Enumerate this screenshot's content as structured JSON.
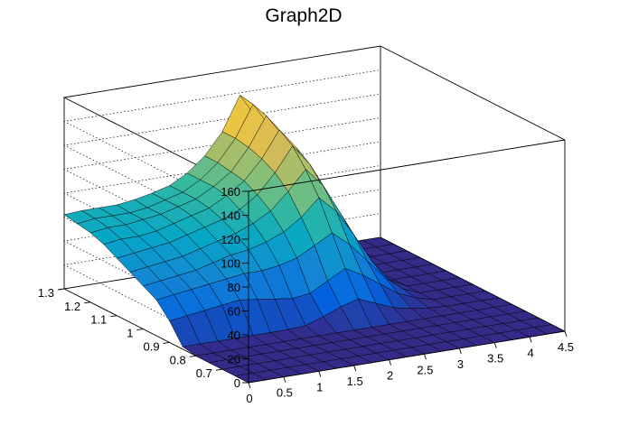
{
  "chart_data": {
    "type": "surface3d",
    "title": "Graph2D",
    "xlabel": "",
    "ylabel": "",
    "zlabel": "",
    "xlim": [
      0,
      4.5
    ],
    "ylim": [
      0.6,
      1.3
    ],
    "zlim": [
      0,
      160
    ],
    "x_ticks": [
      "0",
      "0.5",
      "1",
      "1.5",
      "2",
      "2.5",
      "3",
      "3.5",
      "4",
      "4.5"
    ],
    "x_tick_values": [
      0,
      0.5,
      1,
      1.5,
      2,
      2.5,
      3,
      3.5,
      4,
      4.5
    ],
    "y_ticks": [
      "0.7",
      "0.8",
      "0.9",
      "1",
      "1.1",
      "1.2",
      "1.3"
    ],
    "y_tick_values": [
      0.7,
      0.8,
      0.9,
      1.0,
      1.1,
      1.2,
      1.3
    ],
    "z_ticks": [
      "0",
      "20",
      "40",
      "60",
      "80",
      "100",
      "120",
      "140",
      "160"
    ],
    "z_tick_values": [
      0,
      20,
      40,
      60,
      80,
      100,
      120,
      140,
      160
    ],
    "grid": true,
    "colormap": [
      "#352a87",
      "#0363e1",
      "#1485d4",
      "#06a7c6",
      "#38b99e",
      "#92bf73",
      "#d9ba56",
      "#fcce2e",
      "#f9fb0e"
    ],
    "surface_x": [
      0,
      0.25,
      0.5,
      0.75,
      1,
      1.25,
      1.5,
      1.75,
      2,
      2.25,
      2.5,
      2.75,
      3,
      3.25,
      3.5,
      3.75,
      4,
      4.25,
      4.5
    ],
    "surface_y": [
      0.6,
      0.65,
      0.7,
      0.75,
      0.8,
      0.85,
      0.9,
      0.95,
      1.0,
      1.05,
      1.1,
      1.15,
      1.2,
      1.25,
      1.3
    ],
    "surface_z": [
      [
        0,
        0,
        0,
        0,
        0,
        0,
        0,
        0,
        0,
        0,
        0,
        0,
        0,
        0,
        0,
        0,
        0,
        0,
        0
      ],
      [
        0,
        0,
        0,
        0,
        0,
        0,
        0,
        0,
        0,
        0,
        0,
        0,
        0,
        0,
        0,
        0,
        0,
        0,
        0
      ],
      [
        0,
        0,
        0,
        0,
        0,
        0,
        0,
        0,
        0,
        0,
        0,
        0,
        0,
        0,
        0,
        0,
        0,
        0,
        0
      ],
      [
        0,
        0,
        0,
        0,
        0,
        0,
        0,
        0,
        0,
        0,
        0,
        0,
        0,
        0,
        0,
        0,
        0,
        0,
        0
      ],
      [
        0,
        0,
        0,
        0,
        0,
        0,
        0,
        0,
        0,
        0,
        0,
        0,
        0,
        0,
        0,
        0,
        0,
        0,
        0
      ],
      [
        2,
        2,
        2,
        2,
        2,
        2,
        2,
        3,
        8,
        14,
        18,
        12,
        6,
        3,
        1,
        0,
        0,
        0,
        0
      ],
      [
        18,
        20,
        22,
        24,
        26,
        24,
        22,
        20,
        22,
        30,
        38,
        30,
        20,
        10,
        4,
        0,
        0,
        0,
        0
      ],
      [
        30,
        32,
        34,
        36,
        38,
        40,
        40,
        42,
        46,
        54,
        62,
        50,
        34,
        18,
        6,
        0,
        0,
        0,
        0
      ],
      [
        36,
        38,
        40,
        42,
        46,
        50,
        52,
        56,
        62,
        72,
        86,
        72,
        50,
        26,
        8,
        0,
        0,
        0,
        0
      ],
      [
        42,
        44,
        46,
        48,
        52,
        56,
        60,
        66,
        74,
        88,
        104,
        88,
        62,
        34,
        10,
        0,
        0,
        0,
        0
      ],
      [
        48,
        50,
        52,
        54,
        58,
        62,
        66,
        72,
        82,
        98,
        118,
        100,
        72,
        40,
        12,
        0,
        0,
        0,
        0
      ],
      [
        54,
        56,
        56,
        58,
        62,
        66,
        70,
        78,
        88,
        104,
        126,
        108,
        78,
        44,
        14,
        0,
        0,
        0,
        0
      ],
      [
        58,
        60,
        60,
        62,
        64,
        68,
        72,
        80,
        90,
        108,
        132,
        112,
        80,
        46,
        14,
        0,
        0,
        0,
        0
      ],
      [
        60,
        62,
        62,
        62,
        64,
        68,
        72,
        80,
        92,
        110,
        136,
        114,
        80,
        46,
        14,
        0,
        0,
        0,
        0
      ],
      [
        62,
        63,
        63,
        63,
        65,
        68,
        72,
        80,
        92,
        110,
        138,
        116,
        82,
        46,
        14,
        0,
        0,
        0,
        0
      ]
    ]
  }
}
